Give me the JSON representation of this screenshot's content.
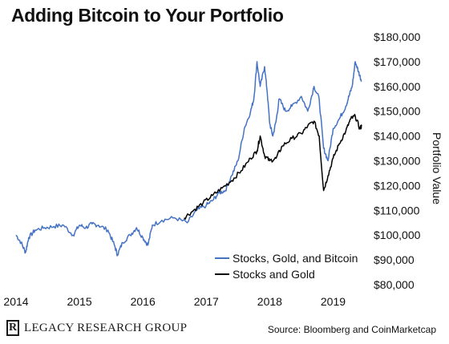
{
  "chart_data": {
    "type": "line",
    "title": "Adding Bitcoin to Your Portfolio",
    "xlabel": "",
    "ylabel": "Portfolio Value",
    "x_tick_labels": [
      "2014",
      "2015",
      "2016",
      "2017",
      "2018",
      "2019"
    ],
    "y_tick_labels": [
      "$80,000",
      "$90,000",
      "$100,000",
      "$110,000",
      "$120,000",
      "$130,000",
      "$140,000",
      "$150,000",
      "$160,000",
      "$170,000",
      "$180,000"
    ],
    "xlim": [
      2014.0,
      2019.5
    ],
    "ylim": [
      80000,
      180000
    ],
    "grid": false,
    "legend_position": "bottom-right",
    "series": [
      {
        "name": "Stocks, Gold, and Bitcoin",
        "color": "#4472c4",
        "x": [
          2014.0,
          2014.08,
          2014.15,
          2014.2,
          2014.3,
          2014.45,
          2014.6,
          2014.75,
          2014.9,
          2015.0,
          2015.1,
          2015.2,
          2015.3,
          2015.45,
          2015.55,
          2015.6,
          2015.68,
          2015.8,
          2015.9,
          2016.0,
          2016.08,
          2016.15,
          2016.3,
          2016.5,
          2016.7,
          2016.85,
          2017.0,
          2017.1,
          2017.2,
          2017.3,
          2017.4,
          2017.5,
          2017.6,
          2017.7,
          2017.75,
          2017.8,
          2017.85,
          2017.92,
          2017.96,
          2018.0,
          2018.05,
          2018.1,
          2018.15,
          2018.25,
          2018.35,
          2018.5,
          2018.6,
          2018.7,
          2018.78,
          2018.85,
          2018.92,
          2019.0,
          2019.1,
          2019.2,
          2019.25,
          2019.3,
          2019.35,
          2019.4,
          2019.45
        ],
        "y": [
          100000,
          97000,
          93000,
          99000,
          102000,
          103000,
          103500,
          104000,
          100000,
          104000,
          103000,
          104500,
          104000,
          102000,
          96000,
          92000,
          97000,
          100000,
          103000,
          99000,
          96000,
          104000,
          106000,
          107000,
          105000,
          110000,
          112000,
          114000,
          117000,
          118000,
          124000,
          130000,
          143000,
          150000,
          155000,
          170000,
          160000,
          168000,
          158000,
          145000,
          140000,
          146000,
          155000,
          150000,
          152000,
          156000,
          150000,
          160000,
          155000,
          135000,
          130000,
          143000,
          147000,
          152000,
          156000,
          160000,
          170000,
          166000,
          162000
        ]
      },
      {
        "name": "Stocks and Gold",
        "color": "#000000",
        "x": [
          2016.65,
          2016.8,
          2016.95,
          2017.1,
          2017.25,
          2017.4,
          2017.55,
          2017.7,
          2017.8,
          2017.85,
          2017.92,
          2018.0,
          2018.1,
          2018.2,
          2018.35,
          2018.5,
          2018.6,
          2018.7,
          2018.78,
          2018.85,
          2018.92,
          2019.0,
          2019.1,
          2019.2,
          2019.28,
          2019.35,
          2019.42,
          2019.45
        ],
        "y": [
          107000,
          110000,
          113000,
          116000,
          119000,
          122000,
          126000,
          131000,
          134000,
          140000,
          132000,
          130000,
          131000,
          136000,
          139000,
          141000,
          144000,
          146000,
          140000,
          118000,
          124000,
          131000,
          137000,
          142000,
          147000,
          148000,
          143000,
          144000
        ]
      }
    ]
  },
  "branding": {
    "logo_letter": "R",
    "logo_text": "LEGACY RESEARCH GROUP",
    "source": "Source: Bloomberg and CoinMarketcap"
  }
}
